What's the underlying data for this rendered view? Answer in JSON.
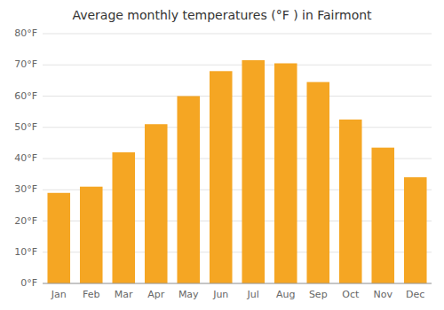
{
  "chart_data": {
    "type": "bar",
    "title": "Average monthly temperatures (°F ) in Fairmont",
    "categories": [
      "Jan",
      "Feb",
      "Mar",
      "Apr",
      "May",
      "Jun",
      "Jul",
      "Aug",
      "Sep",
      "Oct",
      "Nov",
      "Dec"
    ],
    "values": [
      29,
      31,
      42,
      51,
      60,
      68,
      71.5,
      70.5,
      64.5,
      52.5,
      43.5,
      34
    ],
    "color": "#F5A623",
    "ylim": [
      0,
      80
    ],
    "yticks": [
      {
        "value": 0,
        "label": "0°F"
      },
      {
        "value": 10,
        "label": "10°F"
      },
      {
        "value": 20,
        "label": "20°F"
      },
      {
        "value": 30,
        "label": "30°F"
      },
      {
        "value": 40,
        "label": "40°F"
      },
      {
        "value": 50,
        "label": "50°F"
      },
      {
        "value": 60,
        "label": "60°F"
      },
      {
        "value": 70,
        "label": "70°F"
      },
      {
        "value": 80,
        "label": "80°F"
      }
    ],
    "grid": true
  }
}
